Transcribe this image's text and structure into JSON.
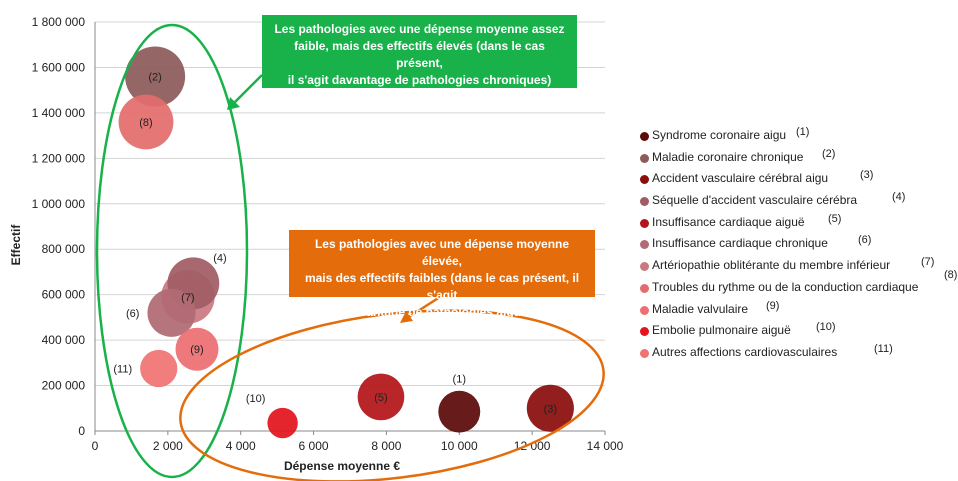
{
  "chart_data": {
    "type": "scatter",
    "xlabel": "Dépense moyenne €",
    "ylabel": "Effectif",
    "xlim": [
      0,
      14000
    ],
    "ylim": [
      0,
      1800000
    ],
    "x_ticks": [
      "0",
      "2 000",
      "4 000",
      "6 000",
      "8 000",
      "10 000",
      "12 000",
      "14 000"
    ],
    "y_ticks": [
      "0",
      "200 000",
      "400 000",
      "600 000",
      "800 000",
      "1 000 000",
      "1 200 000",
      "1 400 000",
      "1 600 000",
      "1 800 000"
    ],
    "grid": "horizontal",
    "legend_position": "right",
    "series": [
      {
        "label": "(1)",
        "name": "Syndrome coronaire aigu",
        "legend_num": "(1)",
        "x": 10000,
        "y": 85000,
        "size": 0.38,
        "color": "#5c0a0a"
      },
      {
        "label": "(2)",
        "name": "Maladie coronaire chronique",
        "legend_num": "(2)",
        "x": 1650,
        "y": 1560000,
        "size": 0.78,
        "color": "#8c5a5a"
      },
      {
        "label": "(3)",
        "name": "Accident vasculaire cérébral aigu",
        "legend_num": "(3)",
        "x": 12500,
        "y": 100000,
        "size": 0.48,
        "color": "#8b0d0d"
      },
      {
        "label": "(4)",
        "name": "Séquelle d'accident vasculaire cérébra",
        "legend_num": "(4)",
        "x": 2700,
        "y": 650000,
        "size": 0.58,
        "color": "#a05c64"
      },
      {
        "label": "(5)",
        "name": "Insuffisance cardiaque aiguë",
        "legend_num": "(5)",
        "x": 7850,
        "y": 150000,
        "size": 0.47,
        "color": "#b3151a"
      },
      {
        "label": "(6)",
        "name": "Insuffisance cardiaque chronique",
        "legend_num": "(6)",
        "x": 2100,
        "y": 520000,
        "size": 0.5,
        "color": "#b06b73"
      },
      {
        "label": "(7)",
        "name": "Artériopathie oblitérante du membre inférieur",
        "legend_num": "(7)",
        "x": 2550,
        "y": 590000,
        "size": 0.62,
        "color": "#c97a80"
      },
      {
        "label": "(8)",
        "name": "Troubles du rythme ou de la conduction cardiaque",
        "legend_num": "(8)",
        "x": 1400,
        "y": 1360000,
        "size": 0.65,
        "color": "#e36d6d"
      },
      {
        "label": "(9)",
        "name": "Maladie valvulaire",
        "legend_num": "(9)",
        "x": 2800,
        "y": 360000,
        "size": 0.4,
        "color": "#ec6f73"
      },
      {
        "label": "(10)",
        "name": "Embolie pulmonaire aiguë",
        "legend_num": "(10)",
        "x": 5150,
        "y": 35000,
        "size": 0.2,
        "color": "#e3141d"
      },
      {
        "label": "(11)",
        "name": "Autres affections cardiovasculaires",
        "legend_num": "(11)",
        "x": 1750,
        "y": 275000,
        "size": 0.3,
        "color": "#f07373"
      }
    ]
  },
  "annotations": {
    "green": {
      "line1": "Les pathologies avec une dépense moyenne assez",
      "line2": "faible, mais des effectifs élevés (dans le cas présent,",
      "line3": "il s'agit davantage de pathologies chroniques)",
      "color": "#18b14a"
    },
    "orange": {
      "line1": "Les pathologies avec une dépense moyenne élevée,",
      "line2": "mais des effectifs faibles (dans le cas présent, il s'agit",
      "line3": "davantage de pathologies aigues)",
      "color": "#e46c0a"
    }
  }
}
